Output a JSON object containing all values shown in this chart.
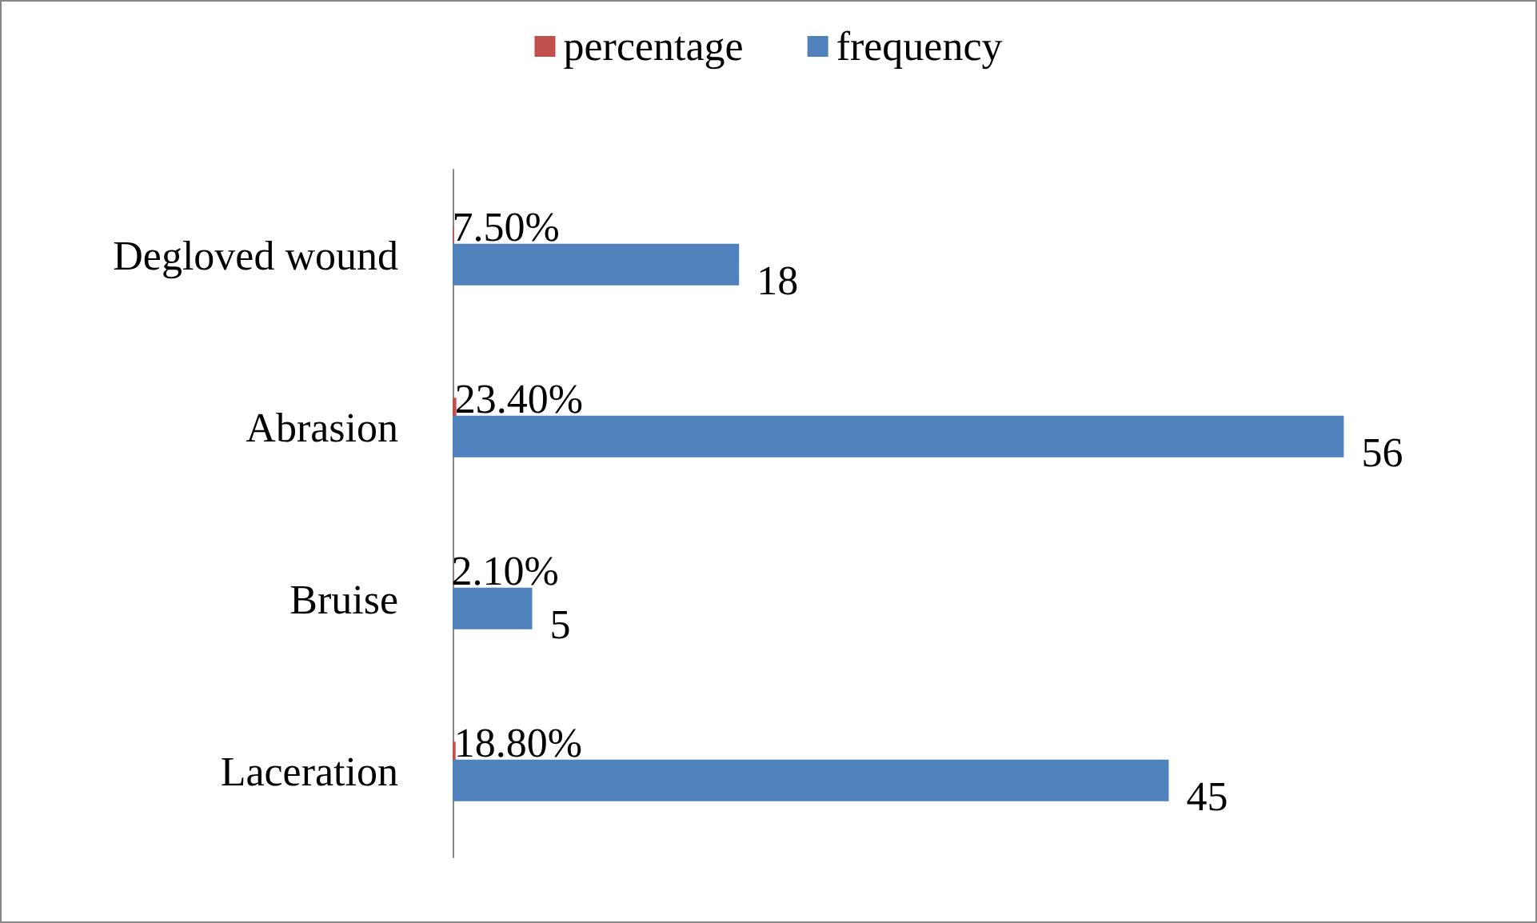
{
  "chart_data": {
    "type": "bar",
    "orientation": "horizontal",
    "categories": [
      "Degloved wound",
      "Abrasion",
      "Bruise",
      "Laceration"
    ],
    "series": [
      {
        "name": "percentage",
        "color": "#c0504d",
        "values": [
          0.075,
          0.234,
          0.021,
          0.188
        ],
        "value_labels": [
          "7.50%",
          "23.40%",
          "2.10%",
          "18.80%"
        ]
      },
      {
        "name": "frequency",
        "color": "#4f81bd",
        "values": [
          18,
          56,
          5,
          45
        ],
        "value_labels": [
          "18",
          "56",
          "5",
          "45"
        ]
      }
    ],
    "legend": "top",
    "grid": false
  }
}
